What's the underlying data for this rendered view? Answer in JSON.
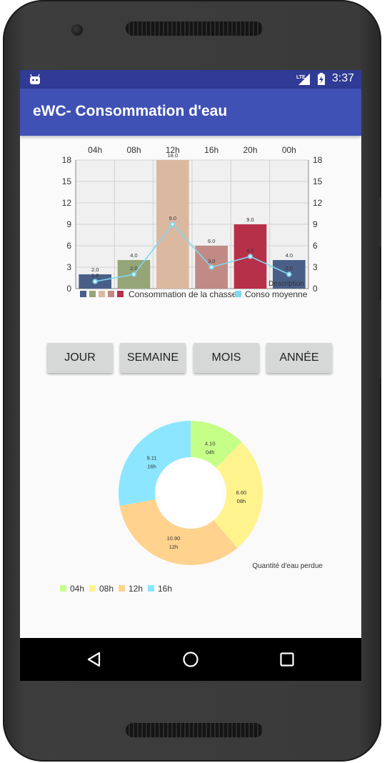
{
  "status_bar": {
    "time": "3:37",
    "network": "LTE"
  },
  "app": {
    "title": "eWC- Consommation d'eau"
  },
  "buttons": [
    {
      "label": "JOUR"
    },
    {
      "label": "SEMAINE"
    },
    {
      "label": "MOIS"
    },
    {
      "label": "ANNÉE"
    }
  ],
  "colors": {
    "appbar": "#3f51b5",
    "statusbar": "#2f3b94"
  },
  "chart_data": [
    {
      "type": "bar",
      "categories": [
        "04h",
        "08h",
        "12h",
        "16h",
        "20h",
        "00h"
      ],
      "series": [
        {
          "name": "Consommation de la chasse",
          "values": [
            2.0,
            4.0,
            18.0,
            6.0,
            9.0,
            4.0
          ],
          "colors": [
            "#4a5f88",
            "#96a578",
            "#dbb9a0",
            "#c18a85",
            "#b7304a",
            "#4a5f88"
          ]
        },
        {
          "name": "Conso moyenne",
          "type": "line",
          "values": [
            1.0,
            2.0,
            9.0,
            3.0,
            4.5,
            2.0
          ],
          "color": "#7fd9f0"
        }
      ],
      "ylim": [
        0,
        18
      ],
      "yticks": [
        0,
        3,
        6,
        9,
        12,
        15,
        18
      ],
      "description": "Description",
      "grid": true,
      "legend": "bottom"
    },
    {
      "type": "pie",
      "labels": [
        "04h",
        "08h",
        "12h",
        "16h"
      ],
      "values": [
        4.1,
        8.6,
        10.9,
        9.11
      ],
      "value_labels": [
        "4.10",
        "8.60",
        "10.90",
        "9.11"
      ],
      "colors": [
        "#c5ff88",
        "#fff38e",
        "#ffd28e",
        "#8ce6ff"
      ],
      "description": "Quantité d'eau perdue",
      "legend": "bottom-left"
    }
  ]
}
